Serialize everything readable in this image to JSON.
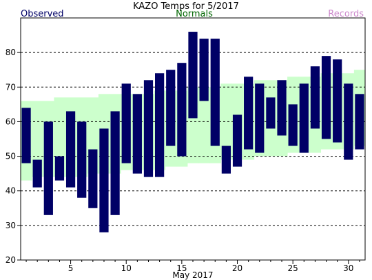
{
  "chart_data": {
    "type": "bar",
    "title": "KAZO Temps for 5/2017",
    "xlabel": "May 2017",
    "ylabel": "",
    "ylim": [
      20,
      90
    ],
    "xlim": [
      0.5,
      31.5
    ],
    "y_ticks": [
      20,
      30,
      40,
      50,
      60,
      70,
      80
    ],
    "x_ticks": [
      5,
      10,
      15,
      20,
      25,
      30
    ],
    "grid": "horizontal-dashed",
    "legend": [
      {
        "label": "Observed",
        "color": "#000066",
        "position": "top-left"
      },
      {
        "label": "Normals",
        "color": "#006600",
        "position": "top-center"
      },
      {
        "label": "Records",
        "color": "#cc88cc",
        "position": "top-right"
      }
    ],
    "days": [
      1,
      2,
      3,
      4,
      5,
      6,
      7,
      8,
      9,
      10,
      11,
      12,
      13,
      14,
      15,
      16,
      17,
      18,
      19,
      20,
      21,
      22,
      23,
      24,
      25,
      26,
      27,
      28,
      29,
      30,
      31
    ],
    "series": [
      {
        "name": "Observed",
        "color": "#000066",
        "low": [
          48,
          41,
          33,
          43,
          41,
          38,
          35,
          28,
          33,
          48,
          45,
          44,
          44,
          53,
          50,
          61,
          66,
          53,
          45,
          47,
          52,
          51,
          58,
          56,
          53,
          51,
          58,
          55,
          54,
          49,
          52
        ],
        "high": [
          64,
          49,
          60,
          50,
          63,
          60,
          52,
          58,
          63,
          71,
          68,
          72,
          74,
          75,
          77,
          86,
          84,
          84,
          53,
          62,
          73,
          71,
          67,
          72,
          65,
          71,
          76,
          79,
          78,
          71,
          68
        ]
      },
      {
        "name": "Normals",
        "color": "#ccffcc",
        "low": [
          43,
          44,
          44,
          44,
          44,
          44,
          45,
          45,
          45,
          46,
          46,
          46,
          46,
          47,
          47,
          48,
          48,
          48,
          49,
          49,
          49,
          50,
          50,
          50,
          51,
          51,
          51,
          52,
          52,
          52,
          53
        ],
        "high": [
          66,
          66,
          66,
          67,
          67,
          67,
          67,
          68,
          68,
          68,
          68,
          68,
          69,
          69,
          69,
          70,
          70,
          70,
          71,
          71,
          71,
          72,
          72,
          72,
          73,
          73,
          73,
          74,
          74,
          74,
          75
        ]
      }
    ]
  }
}
